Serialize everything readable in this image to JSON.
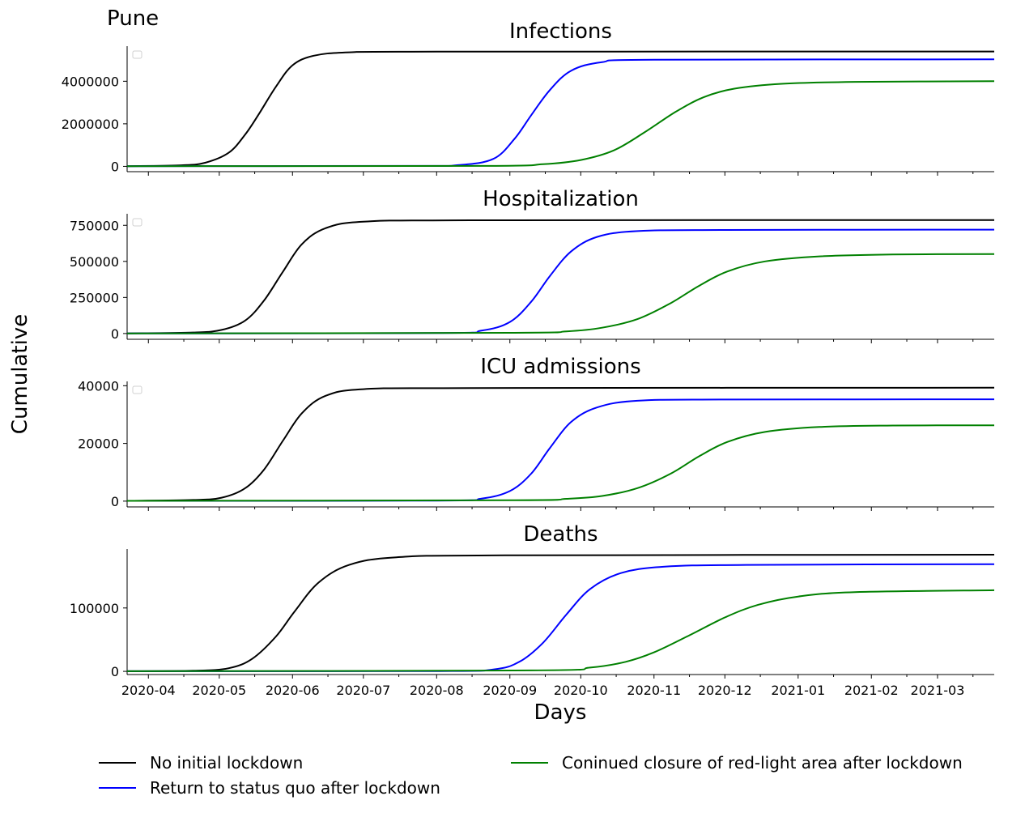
{
  "figure": {
    "title": "Pune",
    "xlabel": "Days",
    "ylabel": "Cumulative"
  },
  "legend": {
    "placement": "bottom",
    "items": [
      {
        "label": "No initial lockdown",
        "color": "#000000"
      },
      {
        "label": "Return to status quo after lockdown",
        "color": "#0000ff"
      },
      {
        "label": "Coninued closure of red-light area after lockdown",
        "color": "#008000"
      }
    ]
  },
  "x_axis": {
    "start": "2020-03-23",
    "end": "2021-03-25",
    "tick_labels": [
      "2020-04",
      "2020-05",
      "2020-06",
      "2020-07",
      "2020-08",
      "2020-09",
      "2020-10",
      "2020-11",
      "2020-12",
      "2021-01",
      "2021-02",
      "2021-03"
    ]
  },
  "chart_data": [
    {
      "type": "line",
      "title": "Infections",
      "ylim": [
        -250000,
        5650000
      ],
      "y_ticks": [
        0,
        2000000,
        4000000
      ],
      "y_tick_labels": [
        "0",
        "2000000",
        "4000000"
      ],
      "empty_legend_marker": true,
      "series": [
        {
          "name": "No initial lockdown",
          "color": "#000000",
          "points": [
            [
              "2020-03-23",
              10000
            ],
            [
              "2020-04-15",
              50000
            ],
            [
              "2020-04-25",
              170000
            ],
            [
              "2020-05-05",
              640000
            ],
            [
              "2020-05-12",
              1500000
            ],
            [
              "2020-05-18",
              2500000
            ],
            [
              "2020-05-25",
              3750000
            ],
            [
              "2020-06-01",
              4750000
            ],
            [
              "2020-06-10",
              5200000
            ],
            [
              "2020-06-25",
              5360000
            ],
            [
              "2020-08-01",
              5390000
            ],
            [
              "2021-03-25",
              5400000
            ]
          ]
        },
        {
          "name": "Return to status quo after lockdown",
          "color": "#0000ff",
          "points": [
            [
              "2020-03-23",
              10000
            ],
            [
              "2020-07-20",
              20000
            ],
            [
              "2020-08-10",
              60000
            ],
            [
              "2020-08-25",
              350000
            ],
            [
              "2020-09-03",
              1300000
            ],
            [
              "2020-09-10",
              2400000
            ],
            [
              "2020-09-18",
              3600000
            ],
            [
              "2020-09-27",
              4500000
            ],
            [
              "2020-10-10",
              4900000
            ],
            [
              "2020-11-01",
              5010000
            ],
            [
              "2021-03-25",
              5030000
            ]
          ]
        },
        {
          "name": "Coninued closure of red-light area after lockdown",
          "color": "#008000",
          "points": [
            [
              "2020-03-23",
              10000
            ],
            [
              "2020-08-20",
              20000
            ],
            [
              "2020-09-15",
              100000
            ],
            [
              "2020-10-01",
              300000
            ],
            [
              "2020-10-15",
              750000
            ],
            [
              "2020-10-28",
              1600000
            ],
            [
              "2020-11-10",
              2550000
            ],
            [
              "2020-11-22",
              3250000
            ],
            [
              "2020-12-05",
              3650000
            ],
            [
              "2020-12-25",
              3880000
            ],
            [
              "2021-01-25",
              3970000
            ],
            [
              "2021-03-25",
              4000000
            ]
          ]
        }
      ]
    },
    {
      "type": "line",
      "title": "Hospitalization",
      "ylim": [
        -40000,
        830000
      ],
      "y_ticks": [
        0,
        250000,
        500000,
        750000
      ],
      "y_tick_labels": [
        "0",
        "250000",
        "500000",
        "750000"
      ],
      "empty_legend_marker": true,
      "series": [
        {
          "name": "No initial lockdown",
          "color": "#000000",
          "points": [
            [
              "2020-03-23",
              1000
            ],
            [
              "2020-04-20",
              7000
            ],
            [
              "2020-05-02",
              25000
            ],
            [
              "2020-05-12",
              90000
            ],
            [
              "2020-05-20",
              230000
            ],
            [
              "2020-05-28",
              430000
            ],
            [
              "2020-06-05",
              620000
            ],
            [
              "2020-06-15",
              730000
            ],
            [
              "2020-07-01",
              775000
            ],
            [
              "2020-08-15",
              785000
            ],
            [
              "2021-03-25",
              787000
            ]
          ]
        },
        {
          "name": "Return to status quo after lockdown",
          "color": "#0000ff",
          "points": [
            [
              "2020-03-23",
              1000
            ],
            [
              "2020-08-01",
              3000
            ],
            [
              "2020-08-20",
              20000
            ],
            [
              "2020-09-01",
              80000
            ],
            [
              "2020-09-10",
              220000
            ],
            [
              "2020-09-18",
              400000
            ],
            [
              "2020-09-27",
              570000
            ],
            [
              "2020-10-08",
              670000
            ],
            [
              "2020-10-25",
              710000
            ],
            [
              "2020-12-01",
              718000
            ],
            [
              "2021-03-25",
              720000
            ]
          ]
        },
        {
          "name": "Coninued closure of red-light area after lockdown",
          "color": "#008000",
          "points": [
            [
              "2020-03-23",
              1000
            ],
            [
              "2020-09-01",
              5000
            ],
            [
              "2020-09-25",
              15000
            ],
            [
              "2020-10-10",
              40000
            ],
            [
              "2020-10-25",
              100000
            ],
            [
              "2020-11-08",
              210000
            ],
            [
              "2020-11-20",
              330000
            ],
            [
              "2020-12-02",
              430000
            ],
            [
              "2020-12-18",
              500000
            ],
            [
              "2021-01-10",
              535000
            ],
            [
              "2021-02-10",
              548000
            ],
            [
              "2021-03-25",
              551000
            ]
          ]
        }
      ]
    },
    {
      "type": "line",
      "title": "ICU admissions",
      "ylim": [
        -2000,
        41500
      ],
      "y_ticks": [
        0,
        20000,
        40000
      ],
      "y_tick_labels": [
        "0",
        "20000",
        "40000"
      ],
      "empty_legend_marker": true,
      "series": [
        {
          "name": "No initial lockdown",
          "color": "#000000",
          "points": [
            [
              "2020-03-23",
              100
            ],
            [
              "2020-04-20",
              400
            ],
            [
              "2020-05-02",
              1200
            ],
            [
              "2020-05-12",
              4500
            ],
            [
              "2020-05-20",
              11000
            ],
            [
              "2020-05-28",
              21000
            ],
            [
              "2020-06-05",
              30500
            ],
            [
              "2020-06-15",
              36500
            ],
            [
              "2020-07-01",
              38800
            ],
            [
              "2020-08-15",
              39200
            ],
            [
              "2021-03-25",
              39300
            ]
          ]
        },
        {
          "name": "Return to status quo after lockdown",
          "color": "#0000ff",
          "points": [
            [
              "2020-03-23",
              100
            ],
            [
              "2020-08-01",
              200
            ],
            [
              "2020-08-20",
              900
            ],
            [
              "2020-09-01",
              3500
            ],
            [
              "2020-09-10",
              9500
            ],
            [
              "2020-09-18",
              18500
            ],
            [
              "2020-09-27",
              27500
            ],
            [
              "2020-10-08",
              32500
            ],
            [
              "2020-10-25",
              34800
            ],
            [
              "2020-12-01",
              35200
            ],
            [
              "2021-03-25",
              35300
            ]
          ]
        },
        {
          "name": "Coninued closure of red-light area after lockdown",
          "color": "#008000",
          "points": [
            [
              "2020-03-23",
              100
            ],
            [
              "2020-09-01",
              300
            ],
            [
              "2020-09-25",
              800
            ],
            [
              "2020-10-10",
              1800
            ],
            [
              "2020-10-25",
              4500
            ],
            [
              "2020-11-08",
              9500
            ],
            [
              "2020-11-20",
              15500
            ],
            [
              "2020-12-02",
              20500
            ],
            [
              "2020-12-18",
              24000
            ],
            [
              "2021-01-10",
              25700
            ],
            [
              "2021-02-10",
              26200
            ],
            [
              "2021-03-25",
              26300
            ]
          ]
        }
      ]
    },
    {
      "type": "line",
      "title": "Deaths",
      "ylim": [
        -5000,
        193000
      ],
      "y_ticks": [
        0,
        100000
      ],
      "y_tick_labels": [
        "0",
        "100000"
      ],
      "empty_legend_marker": false,
      "series": [
        {
          "name": "No initial lockdown",
          "color": "#000000",
          "points": [
            [
              "2020-03-23",
              300
            ],
            [
              "2020-04-20",
              1000
            ],
            [
              "2020-05-05",
              5000
            ],
            [
              "2020-05-15",
              20000
            ],
            [
              "2020-05-25",
              55000
            ],
            [
              "2020-06-02",
              95000
            ],
            [
              "2020-06-12",
              140000
            ],
            [
              "2020-06-25",
              168000
            ],
            [
              "2020-07-15",
              180000
            ],
            [
              "2020-08-30",
              183000
            ],
            [
              "2021-03-25",
              184000
            ]
          ]
        },
        {
          "name": "Return to status quo after lockdown",
          "color": "#0000ff",
          "points": [
            [
              "2020-03-23",
              300
            ],
            [
              "2020-08-01",
              500
            ],
            [
              "2020-08-25",
              3000
            ],
            [
              "2020-09-05",
              15000
            ],
            [
              "2020-09-15",
              45000
            ],
            [
              "2020-09-25",
              90000
            ],
            [
              "2020-10-05",
              130000
            ],
            [
              "2020-10-18",
              155000
            ],
            [
              "2020-11-05",
              165000
            ],
            [
              "2020-12-10",
              168000
            ],
            [
              "2021-03-25",
              169000
            ]
          ]
        },
        {
          "name": "Coninued closure of red-light area after lockdown",
          "color": "#008000",
          "points": [
            [
              "2020-03-23",
              300
            ],
            [
              "2020-09-10",
              1500
            ],
            [
              "2020-10-05",
              6000
            ],
            [
              "2020-10-20",
              15000
            ],
            [
              "2020-11-01",
              30000
            ],
            [
              "2020-11-15",
              55000
            ],
            [
              "2020-12-01",
              85000
            ],
            [
              "2020-12-15",
              105000
            ],
            [
              "2021-01-01",
              118000
            ],
            [
              "2021-01-25",
              125000
            ],
            [
              "2021-03-25",
              128000
            ]
          ]
        }
      ]
    }
  ]
}
